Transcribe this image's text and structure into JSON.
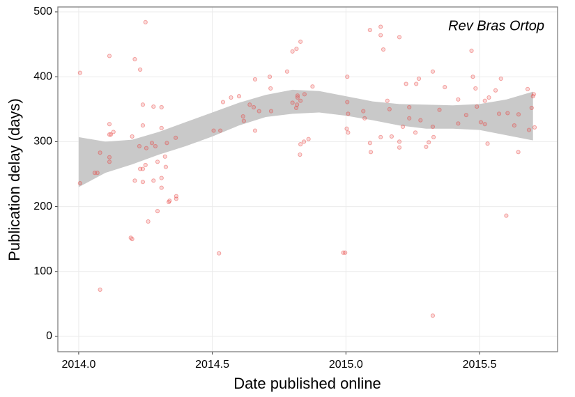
{
  "chart_data": {
    "type": "scatter",
    "annotation": "Rev Bras Ortop",
    "x_label": "Date published online",
    "y_label": "Publication delay (days)",
    "xlim": [
      2013.922,
      2015.792
    ],
    "ylim": [
      -23.6,
      507.5
    ],
    "xticks": [
      {
        "value": 2014,
        "label": "2014.0"
      },
      2014.5,
      {
        "value": 2015,
        "label": "2015.0"
      },
      2015.5
    ],
    "yticks": [
      0,
      100,
      200,
      300,
      400,
      500
    ],
    "grid": true,
    "series": [
      {
        "color": "#e8423f",
        "x": [
          2014.005,
          2014.005,
          2014.08,
          2014.08,
          2014.06,
          2014.07,
          2014.115,
          2014.115,
          2014.115,
          2014.12,
          2014.115,
          2014.115,
          2014.13,
          2014.195,
          2014.2,
          2014.21,
          2014.23,
          2014.25,
          2014.24,
          2014.28,
          2014.31,
          2014.24,
          2014.24,
          2014.23,
          2014.25,
          2014.26,
          2014.295,
          2014.21,
          2014.24,
          2014.28,
          2014.31,
          2014.31,
          2014.33,
          2014.31,
          2014.34,
          2014.337,
          2014.365,
          2014.365,
          2014.363,
          2014.323,
          2014.326,
          2014.2,
          2014.253,
          2014.274,
          2014.227,
          2014.287,
          2014.295,
          2014.525,
          2014.505,
          2014.53,
          2014.54,
          2014.57,
          2014.6,
          2014.615,
          2014.618,
          2014.66,
          2014.66,
          2014.64,
          2014.655,
          2014.675,
          2014.715,
          2014.718,
          2014.72,
          2014.78,
          2014.8,
          2014.815,
          2014.83,
          2014.83,
          2014.828,
          2014.843,
          2014.86,
          2014.819,
          2014.819,
          2014.817,
          2014.814,
          2014.845,
          2014.83,
          2014.8,
          2014.875,
          2014.99,
          2014.997,
          2015.005,
          2015.003,
          2015.008,
          2015.005,
          2015.008,
          2015.065,
          2015.07,
          2015.09,
          2015.093,
          2015.09,
          2015.13,
          2015.13,
          2015.14,
          2015.13,
          2015.155,
          2015.163,
          2015.171,
          2015.2,
          2015.2,
          2015.2,
          2015.213,
          2015.225,
          2015.237,
          2015.237,
          2015.26,
          2015.263,
          2015.273,
          2015.279,
          2015.3,
          2015.31,
          2015.325,
          2015.325,
          2015.328,
          2015.325,
          2015.35,
          2015.37,
          2015.42,
          2015.42,
          2015.47,
          2015.475,
          2015.485,
          2015.49,
          2015.52,
          2015.53,
          2015.535,
          2015.56,
          2015.58,
          2015.6,
          2015.573,
          2015.605,
          2015.63,
          2015.646,
          2015.645,
          2015.68,
          2015.7,
          2015.703,
          2015.706,
          2015.695,
          2015.685,
          2015.505,
          2015.45,
          2015.52
        ],
        "values": [
          406,
          236,
          72,
          283,
          252,
          252,
          432,
          327,
          311,
          311,
          276,
          269,
          315,
          152,
          150,
          427,
          411,
          484,
          357,
          354,
          353,
          325,
          258,
          258,
          264,
          177,
          193,
          240,
          238,
          240,
          244,
          229,
          298,
          321,
          209,
          207,
          216,
          212,
          306,
          277,
          261,
          308,
          290,
          298,
          293,
          293,
          269,
          128,
          317,
          317,
          361,
          368,
          370,
          339,
          332,
          317,
          396,
          357,
          353,
          347,
          400,
          382,
          347,
          408,
          439,
          443,
          454,
          296,
          280,
          300,
          304,
          371,
          368,
          357,
          352,
          373,
          363,
          360,
          385,
          129,
          129,
          400,
          320,
          314,
          361,
          343,
          347,
          336,
          298,
          284,
          472,
          464,
          477,
          442,
          307,
          363,
          350,
          308,
          461,
          300,
          291,
          323,
          389,
          353,
          336,
          314,
          389,
          397,
          333,
          292,
          299,
          408,
          323,
          307,
          32,
          349,
          384,
          328,
          365,
          440,
          400,
          382,
          354,
          327,
          297,
          368,
          379,
          397,
          186,
          343,
          344,
          325,
          342,
          284,
          381,
          370,
          373,
          322,
          352,
          318,
          330,
          341,
          363
        ]
      }
    ],
    "band": {
      "color": "#c9c9c9",
      "x": [
        2014.0,
        2014.1,
        2014.2,
        2014.3,
        2014.4,
        2014.5,
        2014.6,
        2014.7,
        2014.8,
        2014.9,
        2015.0,
        2015.1,
        2015.2,
        2015.3,
        2015.4,
        2015.5,
        2015.6,
        2015.7
      ],
      "lower": [
        230,
        252,
        265,
        280,
        293,
        308,
        325,
        338,
        343,
        345,
        340,
        333,
        325,
        320,
        320,
        318,
        310,
        302
      ],
      "upper": [
        307,
        300,
        303,
        315,
        330,
        345,
        360,
        372,
        380,
        378,
        370,
        362,
        358,
        357,
        356,
        358,
        365,
        377
      ]
    }
  }
}
